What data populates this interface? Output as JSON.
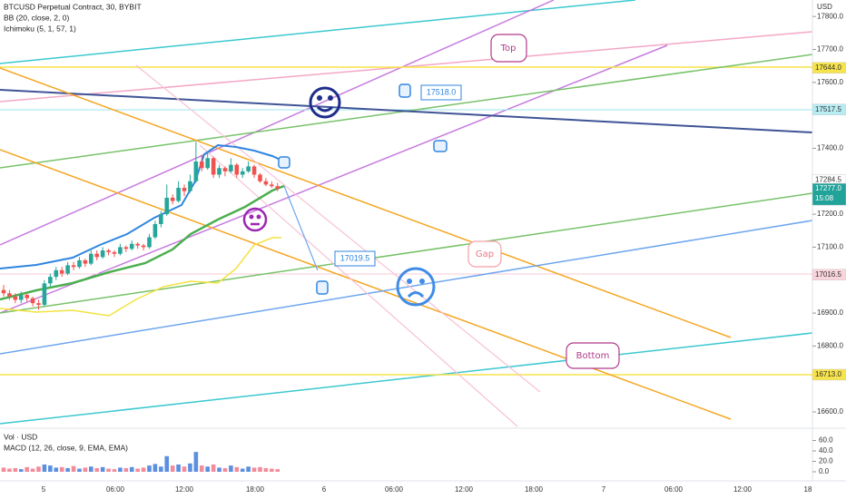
{
  "chart_data": {
    "type": "candlestick",
    "title": "BTCUSD Perpetual Contract, 30, BYBIT",
    "indicators": [
      "BB (20, close, 2, 0)",
      "Ichimoku (5, 1, 57, 1)"
    ],
    "currency": "USD",
    "ylim": [
      16556,
      17850
    ],
    "yticks": [
      {
        "value": 17800,
        "label": "17800.0"
      },
      {
        "value": 17700,
        "label": "17700.0"
      },
      {
        "value": 17600,
        "label": "17600.0"
      },
      {
        "value": 17400,
        "label": "17400.0"
      },
      {
        "value": 17200,
        "label": "17200.0"
      },
      {
        "value": 17100,
        "label": "17100.0"
      },
      {
        "value": 16900,
        "label": "16900.0"
      },
      {
        "value": 16800,
        "label": "16800.0"
      },
      {
        "value": 16600,
        "label": "16600.0"
      }
    ],
    "price_tags": [
      {
        "value": 17644,
        "label": "17644.0",
        "color": "#f7e34a"
      },
      {
        "value": 17517.5,
        "label": "17517.5",
        "color": "#b6ecf2"
      },
      {
        "value": 17284.5,
        "label": "17284.5",
        "color": "#ffffff"
      },
      {
        "value": 17277,
        "label": "17277.0",
        "countdown": "15:08",
        "color": "#22a39a"
      },
      {
        "value": 17016.5,
        "label": "17016.5",
        "color": "#f9d4dc"
      },
      {
        "value": 16713,
        "label": "16713.0",
        "color": "#f7e34a"
      }
    ],
    "xtick_labels": [
      "5",
      "06:00",
      "12:00",
      "18:00",
      "6",
      "06:00",
      "12:00",
      "18:00",
      "7",
      "06:00",
      "12:00",
      "18"
    ],
    "annotations": [
      "Top",
      "Gap",
      "Bottom",
      "17518.0",
      "17019.5"
    ],
    "up_color": "#26a69a",
    "down_color": "#ef5350",
    "ohlc": [
      [
        16970,
        16985,
        16950,
        16960
      ],
      [
        16960,
        16970,
        16940,
        16950
      ],
      [
        16950,
        16960,
        16930,
        16940
      ],
      [
        16940,
        16965,
        16930,
        16955
      ],
      [
        16955,
        16960,
        16935,
        16945
      ],
      [
        16945,
        16950,
        16920,
        16930
      ],
      [
        16930,
        16940,
        16910,
        16925
      ],
      [
        16925,
        17000,
        16920,
        16990
      ],
      [
        16990,
        17020,
        16980,
        17010
      ],
      [
        17010,
        17040,
        17000,
        17030
      ],
      [
        17030,
        17040,
        17010,
        17020
      ],
      [
        17020,
        17055,
        17015,
        17045
      ],
      [
        17045,
        17055,
        17030,
        17040
      ],
      [
        17040,
        17070,
        17035,
        17060
      ],
      [
        17060,
        17065,
        17040,
        17050
      ],
      [
        17050,
        17090,
        17045,
        17080
      ],
      [
        17080,
        17090,
        17060,
        17070
      ],
      [
        17070,
        17100,
        17065,
        17090
      ],
      [
        17090,
        17095,
        17075,
        17085
      ],
      [
        17085,
        17090,
        17070,
        17080
      ],
      [
        17080,
        17110,
        17075,
        17100
      ],
      [
        17100,
        17105,
        17085,
        17095
      ],
      [
        17095,
        17120,
        17090,
        17110
      ],
      [
        17110,
        17115,
        17095,
        17105
      ],
      [
        17105,
        17110,
        17090,
        17100
      ],
      [
        17100,
        17140,
        17095,
        17130
      ],
      [
        17130,
        17180,
        17125,
        17170
      ],
      [
        17170,
        17210,
        17160,
        17200
      ],
      [
        17200,
        17290,
        17195,
        17250
      ],
      [
        17250,
        17260,
        17230,
        17240
      ],
      [
        17240,
        17300,
        17235,
        17280
      ],
      [
        17280,
        17290,
        17255,
        17270
      ],
      [
        17270,
        17320,
        17265,
        17300
      ],
      [
        17300,
        17420,
        17295,
        17360
      ],
      [
        17360,
        17380,
        17330,
        17340
      ],
      [
        17340,
        17390,
        17335,
        17370
      ],
      [
        17370,
        17375,
        17310,
        17320
      ],
      [
        17320,
        17350,
        17310,
        17340
      ],
      [
        17340,
        17345,
        17315,
        17330
      ],
      [
        17330,
        17370,
        17325,
        17350
      ],
      [
        17350,
        17355,
        17310,
        17320
      ],
      [
        17320,
        17340,
        17310,
        17330
      ],
      [
        17330,
        17360,
        17325,
        17345
      ],
      [
        17345,
        17350,
        17310,
        17320
      ],
      [
        17320,
        17325,
        17295,
        17300
      ],
      [
        17300,
        17310,
        17285,
        17290
      ],
      [
        17290,
        17300,
        17280,
        17285
      ],
      [
        17285,
        17295,
        17270,
        17277
      ]
    ],
    "volume_pane": {
      "title": "Vol · USD",
      "macd_title": "MACD (12, 26, close, 9, EMA, EMA)",
      "ylim": [
        0,
        80
      ],
      "yticks": [
        {
          "value": 0,
          "label": "0.0"
        },
        {
          "value": 20,
          "label": "20.0"
        },
        {
          "value": 40,
          "label": "40.0"
        },
        {
          "value": 60,
          "label": "60.0"
        }
      ],
      "values": [
        8,
        6,
        7,
        5,
        9,
        6,
        10,
        14,
        12,
        8,
        9,
        7,
        11,
        6,
        8,
        10,
        7,
        9,
        6,
        5,
        8,
        7,
        9,
        6,
        8,
        12,
        15,
        10,
        30,
        12,
        14,
        10,
        16,
        38,
        12,
        10,
        14,
        8,
        7,
        12,
        9,
        6,
        10,
        8,
        9,
        7,
        6,
        5
      ]
    }
  }
}
